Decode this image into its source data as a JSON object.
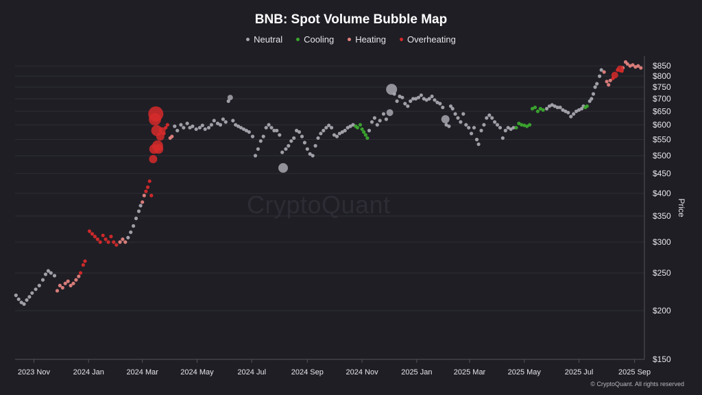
{
  "chart_data": {
    "type": "scatter",
    "title": "BNB: Spot Volume Bubble Map",
    "ylabel": "Price",
    "yscale": "log",
    "ylim": [
      150,
      900
    ],
    "xlim": [
      "2023-10-11",
      "2025-09-12"
    ],
    "y_ticks": [
      150,
      200,
      250,
      300,
      350,
      400,
      450,
      500,
      550,
      600,
      650,
      700,
      750,
      800,
      850
    ],
    "y_tick_labels": [
      "$150",
      "$200",
      "$250",
      "$300",
      "$350",
      "$400",
      "$450",
      "$500",
      "$550",
      "$600",
      "$650",
      "$700",
      "$750",
      "$800",
      "$850"
    ],
    "x_ticks": [
      "2023-11-01",
      "2024-01-01",
      "2024-03-01",
      "2024-05-01",
      "2024-07-01",
      "2024-09-01",
      "2024-11-01",
      "2025-01-01",
      "2025-03-01",
      "2025-05-01",
      "2025-07-01",
      "2025-09-01"
    ],
    "x_tick_labels": [
      "2023 Nov",
      "2024 Jan",
      "2024 Mar",
      "2024 May",
      "2024 Jul",
      "2024 Sep",
      "2024 Nov",
      "2025 Jan",
      "2025 Mar",
      "2025 May",
      "2025 Jul",
      "2025 Sep"
    ],
    "grid": true,
    "legend_position": "top",
    "series": [
      {
        "name": "Neutral",
        "color": "#a8a7af",
        "points": [
          [
            "2023-10-12",
            219
          ],
          [
            "2023-10-15",
            214
          ],
          [
            "2023-10-18",
            210
          ],
          [
            "2023-10-21",
            208
          ],
          [
            "2023-10-24",
            213
          ],
          [
            "2023-10-27",
            217
          ],
          [
            "2023-10-30",
            222
          ],
          [
            "2023-11-03",
            227
          ],
          [
            "2023-11-07",
            232
          ],
          [
            "2023-11-11",
            240
          ],
          [
            "2023-11-14",
            248
          ],
          [
            "2023-11-17",
            253
          ],
          [
            "2023-11-20",
            250
          ],
          [
            "2023-11-24",
            246
          ],
          [
            "2024-02-14",
            308
          ],
          [
            "2024-02-17",
            318
          ],
          [
            "2024-02-20",
            330
          ],
          [
            "2024-02-23",
            345
          ],
          [
            "2024-02-26",
            360
          ],
          [
            "2024-02-28",
            372
          ],
          [
            "2024-04-06",
            595
          ],
          [
            "2024-04-09",
            580
          ],
          [
            "2024-04-13",
            600
          ],
          [
            "2024-04-16",
            590
          ],
          [
            "2024-04-20",
            605
          ],
          [
            "2024-04-23",
            590
          ],
          [
            "2024-04-26",
            595
          ],
          [
            "2024-04-30",
            585
          ],
          [
            "2024-05-04",
            590
          ],
          [
            "2024-05-07",
            598
          ],
          [
            "2024-05-10",
            585
          ],
          [
            "2024-05-14",
            590
          ],
          [
            "2024-05-17",
            600
          ],
          [
            "2024-05-20",
            615
          ],
          [
            "2024-05-24",
            605
          ],
          [
            "2024-05-27",
            600
          ],
          [
            "2024-05-30",
            620
          ],
          [
            "2024-06-02",
            610
          ],
          [
            "2024-06-05",
            690
          ],
          [
            "2024-06-07",
            705
          ],
          [
            "2024-06-10",
            615
          ],
          [
            "2024-06-13",
            600
          ],
          [
            "2024-06-16",
            595
          ],
          [
            "2024-06-19",
            590
          ],
          [
            "2024-06-22",
            585
          ],
          [
            "2024-06-25",
            580
          ],
          [
            "2024-06-28",
            575
          ],
          [
            "2024-07-02",
            560
          ],
          [
            "2024-07-05",
            500
          ],
          [
            "2024-07-08",
            520
          ],
          [
            "2024-07-11",
            545
          ],
          [
            "2024-07-14",
            560
          ],
          [
            "2024-07-17",
            590
          ],
          [
            "2024-07-20",
            600
          ],
          [
            "2024-07-23",
            590
          ],
          [
            "2024-07-26",
            580
          ],
          [
            "2024-07-29",
            580
          ],
          [
            "2024-08-01",
            565
          ],
          [
            "2024-08-04",
            510
          ],
          [
            "2024-08-05",
            465
          ],
          [
            "2024-08-08",
            520
          ],
          [
            "2024-08-11",
            530
          ],
          [
            "2024-08-14",
            545
          ],
          [
            "2024-08-17",
            555
          ],
          [
            "2024-08-20",
            580
          ],
          [
            "2024-08-23",
            575
          ],
          [
            "2024-08-26",
            560
          ],
          [
            "2024-08-29",
            540
          ],
          [
            "2024-09-01",
            520
          ],
          [
            "2024-09-04",
            505
          ],
          [
            "2024-09-07",
            500
          ],
          [
            "2024-09-10",
            530
          ],
          [
            "2024-09-13",
            555
          ],
          [
            "2024-09-16",
            570
          ],
          [
            "2024-09-19",
            580
          ],
          [
            "2024-09-22",
            590
          ],
          [
            "2024-09-25",
            598
          ],
          [
            "2024-09-28",
            590
          ],
          [
            "2024-10-01",
            565
          ],
          [
            "2024-10-04",
            560
          ],
          [
            "2024-10-07",
            570
          ],
          [
            "2024-10-10",
            575
          ],
          [
            "2024-10-13",
            580
          ],
          [
            "2024-10-16",
            590
          ],
          [
            "2024-10-19",
            595
          ],
          [
            "2024-10-22",
            600
          ],
          [
            "2024-11-09",
            580
          ],
          [
            "2024-11-12",
            610
          ],
          [
            "2024-11-15",
            625
          ],
          [
            "2024-11-18",
            600
          ],
          [
            "2024-11-21",
            615
          ],
          [
            "2024-11-25",
            640
          ],
          [
            "2024-11-28",
            620
          ],
          [
            "2024-12-02",
            645
          ],
          [
            "2024-12-04",
            740
          ],
          [
            "2024-12-07",
            720
          ],
          [
            "2024-12-10",
            690
          ],
          [
            "2024-12-13",
            710
          ],
          [
            "2024-12-16",
            705
          ],
          [
            "2024-12-19",
            680
          ],
          [
            "2024-12-22",
            670
          ],
          [
            "2024-12-25",
            690
          ],
          [
            "2024-12-28",
            700
          ],
          [
            "2024-12-31",
            700
          ],
          [
            "2025-01-03",
            705
          ],
          [
            "2025-01-06",
            715
          ],
          [
            "2025-01-09",
            700
          ],
          [
            "2025-01-12",
            695
          ],
          [
            "2025-01-15",
            700
          ],
          [
            "2025-01-18",
            710
          ],
          [
            "2025-01-21",
            695
          ],
          [
            "2025-01-24",
            685
          ],
          [
            "2025-01-27",
            680
          ],
          [
            "2025-01-30",
            665
          ],
          [
            "2025-02-02",
            620
          ],
          [
            "2025-02-03",
            600
          ],
          [
            "2025-02-06",
            595
          ],
          [
            "2025-02-08",
            670
          ],
          [
            "2025-02-10",
            660
          ],
          [
            "2025-02-13",
            640
          ],
          [
            "2025-02-16",
            625
          ],
          [
            "2025-02-19",
            610
          ],
          [
            "2025-02-22",
            640
          ],
          [
            "2025-02-25",
            600
          ],
          [
            "2025-02-28",
            590
          ],
          [
            "2025-03-03",
            570
          ],
          [
            "2025-03-06",
            590
          ],
          [
            "2025-03-09",
            550
          ],
          [
            "2025-03-11",
            535
          ],
          [
            "2025-03-14",
            580
          ],
          [
            "2025-03-17",
            600
          ],
          [
            "2025-03-20",
            625
          ],
          [
            "2025-03-23",
            635
          ],
          [
            "2025-03-26",
            625
          ],
          [
            "2025-03-29",
            610
          ],
          [
            "2025-04-01",
            600
          ],
          [
            "2025-04-04",
            590
          ],
          [
            "2025-04-07",
            555
          ],
          [
            "2025-04-10",
            580
          ],
          [
            "2025-04-13",
            590
          ],
          [
            "2025-04-16",
            585
          ],
          [
            "2025-04-19",
            590
          ],
          [
            "2025-05-26",
            660
          ],
          [
            "2025-05-29",
            670
          ],
          [
            "2025-06-01",
            675
          ],
          [
            "2025-06-04",
            670
          ],
          [
            "2025-06-07",
            665
          ],
          [
            "2025-06-10",
            665
          ],
          [
            "2025-06-13",
            655
          ],
          [
            "2025-06-16",
            650
          ],
          [
            "2025-06-19",
            645
          ],
          [
            "2025-06-22",
            630
          ],
          [
            "2025-06-25",
            640
          ],
          [
            "2025-06-28",
            650
          ],
          [
            "2025-07-01",
            655
          ],
          [
            "2025-07-04",
            660
          ],
          [
            "2025-07-06",
            670
          ],
          [
            "2025-07-13",
            690
          ],
          [
            "2025-07-15",
            700
          ],
          [
            "2025-07-17",
            720
          ],
          [
            "2025-07-19",
            750
          ],
          [
            "2025-07-21",
            765
          ],
          [
            "2025-07-24",
            800
          ],
          [
            "2025-07-26",
            830
          ]
        ]
      },
      {
        "name": "Cooling",
        "color": "#3ba82e",
        "points": [
          [
            "2024-10-25",
            595
          ],
          [
            "2024-10-27",
            590
          ],
          [
            "2024-10-30",
            600
          ],
          [
            "2024-11-01",
            585
          ],
          [
            "2024-11-03",
            575
          ],
          [
            "2024-11-05",
            565
          ],
          [
            "2024-11-07",
            555
          ],
          [
            "2025-04-22",
            590
          ],
          [
            "2025-04-25",
            605
          ],
          [
            "2025-04-28",
            600
          ],
          [
            "2025-05-01",
            598
          ],
          [
            "2025-05-04",
            595
          ],
          [
            "2025-05-07",
            600
          ],
          [
            "2025-05-10",
            660
          ],
          [
            "2025-05-13",
            665
          ],
          [
            "2025-05-16",
            650
          ],
          [
            "2025-05-19",
            660
          ],
          [
            "2025-05-22",
            655
          ],
          [
            "2025-07-08",
            665
          ],
          [
            "2025-07-10",
            670
          ]
        ]
      },
      {
        "name": "Heating",
        "color": "#e3827d",
        "points": [
          [
            "2023-11-27",
            225
          ],
          [
            "2023-11-30",
            232
          ],
          [
            "2023-12-03",
            229
          ],
          [
            "2023-12-06",
            235
          ],
          [
            "2023-12-09",
            238
          ],
          [
            "2023-12-12",
            232
          ],
          [
            "2023-12-15",
            235
          ],
          [
            "2023-12-18",
            240
          ],
          [
            "2023-12-21",
            245
          ],
          [
            "2024-02-05",
            300
          ],
          [
            "2024-02-08",
            305
          ],
          [
            "2024-02-11",
            300
          ],
          [
            "2024-03-01",
            380
          ],
          [
            "2024-03-03",
            395
          ],
          [
            "2024-04-01",
            555
          ],
          [
            "2024-04-03",
            560
          ],
          [
            "2025-07-29",
            820
          ],
          [
            "2025-08-01",
            775
          ],
          [
            "2025-08-03",
            760
          ],
          [
            "2025-08-05",
            780
          ],
          [
            "2025-08-19",
            840
          ],
          [
            "2025-08-22",
            870
          ],
          [
            "2025-08-24",
            860
          ],
          [
            "2025-08-27",
            850
          ],
          [
            "2025-08-30",
            855
          ],
          [
            "2025-09-02",
            845
          ],
          [
            "2025-09-05",
            850
          ],
          [
            "2025-09-08",
            840
          ]
        ]
      },
      {
        "name": "Overheating",
        "color": "#d62a2a",
        "points": [
          [
            "2023-12-23",
            250
          ],
          [
            "2023-12-26",
            262
          ],
          [
            "2023-12-28",
            268
          ],
          [
            "2024-01-02",
            320
          ],
          [
            "2024-01-05",
            315
          ],
          [
            "2024-01-08",
            310
          ],
          [
            "2024-01-11",
            305
          ],
          [
            "2024-01-14",
            300
          ],
          [
            "2024-01-17",
            312
          ],
          [
            "2024-01-20",
            305
          ],
          [
            "2024-01-23",
            300
          ],
          [
            "2024-01-26",
            310
          ],
          [
            "2024-01-29",
            300
          ],
          [
            "2024-02-01",
            295
          ],
          [
            "2024-03-05",
            405
          ],
          [
            "2024-03-07",
            415
          ],
          [
            "2024-03-09",
            430
          ],
          [
            "2024-03-11",
            395
          ],
          [
            "2024-03-13",
            490
          ],
          [
            "2024-03-14",
            520
          ],
          [
            "2024-03-15",
            620
          ],
          [
            "2024-03-16",
            640
          ],
          [
            "2024-03-17",
            580
          ],
          [
            "2024-03-18",
            530
          ],
          [
            "2024-03-19",
            520
          ],
          [
            "2024-03-21",
            560
          ],
          [
            "2024-03-23",
            580
          ],
          [
            "2024-03-25",
            570
          ],
          [
            "2024-03-27",
            590
          ],
          [
            "2024-03-29",
            600
          ],
          [
            "2025-08-08",
            790
          ],
          [
            "2025-08-10",
            805
          ],
          [
            "2025-08-13",
            830
          ],
          [
            "2025-08-16",
            835
          ],
          [
            "2025-08-18",
            825
          ]
        ]
      }
    ],
    "annotations": [
      "CryptoQuant",
      "© CryptoQuant. All rights reserved"
    ]
  }
}
